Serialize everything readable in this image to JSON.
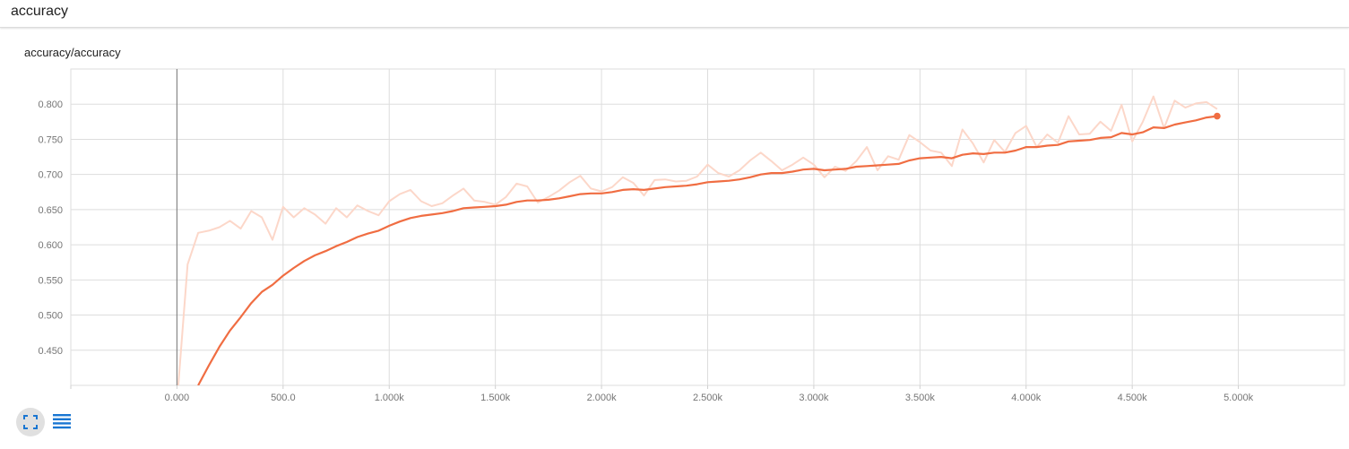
{
  "section": {
    "title": "accuracy"
  },
  "card": {
    "title": "accuracy/accuracy"
  },
  "colors": {
    "smoothed": "#f06d42",
    "raw": "#fcd7c9",
    "grid": "#dddddd",
    "zero_line": "#888888",
    "icon": "#1976d2"
  },
  "icons": {
    "expand": "fullscreen-icon",
    "data_toggle": "list-icon"
  },
  "chart_data": {
    "type": "line",
    "title": "accuracy/accuracy",
    "xlabel": "",
    "ylabel": "",
    "xlim": [
      -500,
      5500
    ],
    "ylim": [
      0.4,
      0.85
    ],
    "x_ticks": [
      "0.000",
      "500.0",
      "1.000k",
      "1.500k",
      "2.000k",
      "2.500k",
      "3.000k",
      "3.500k",
      "4.000k",
      "4.500k",
      "5.000k"
    ],
    "x_tick_values": [
      0,
      500,
      1000,
      1500,
      2000,
      2500,
      3000,
      3500,
      4000,
      4500,
      5000
    ],
    "y_ticks": [
      "0.450",
      "0.500",
      "0.550",
      "0.600",
      "0.650",
      "0.700",
      "0.750",
      "0.800"
    ],
    "y_tick_values": [
      0.45,
      0.5,
      0.55,
      0.6,
      0.65,
      0.7,
      0.75,
      0.8
    ],
    "grid": true,
    "legend": "none",
    "series": [
      {
        "role": "raw",
        "x": [
          0,
          50,
          100,
          150,
          200,
          250,
          300,
          350,
          400,
          450,
          500,
          550,
          600,
          650,
          700,
          750,
          800,
          850,
          900,
          950,
          1000,
          1050,
          1100,
          1150,
          1200,
          1250,
          1300,
          1350,
          1400,
          1450,
          1500,
          1550,
          1600,
          1650,
          1700,
          1750,
          1800,
          1850,
          1900,
          1950,
          2000,
          2050,
          2100,
          2150,
          2200,
          2250,
          2300,
          2350,
          2400,
          2450,
          2500,
          2550,
          2600,
          2650,
          2700,
          2750,
          2800,
          2850,
          2900,
          2950,
          3000,
          3050,
          3100,
          3150,
          3200,
          3250,
          3300,
          3350,
          3400,
          3450,
          3500,
          3550,
          3600,
          3650,
          3700,
          3750,
          3800,
          3850,
          3900,
          3950,
          4000,
          4050,
          4100,
          4150,
          4200,
          4250,
          4300,
          4350,
          4400,
          4450,
          4500,
          4550,
          4600,
          4650,
          4700,
          4750,
          4800,
          4850,
          4900
        ],
        "y": [
          0.375,
          0.572,
          0.617,
          0.62,
          0.625,
          0.634,
          0.623,
          0.648,
          0.639,
          0.607,
          0.654,
          0.639,
          0.652,
          0.643,
          0.63,
          0.652,
          0.639,
          0.656,
          0.648,
          0.642,
          0.662,
          0.672,
          0.678,
          0.662,
          0.655,
          0.659,
          0.67,
          0.68,
          0.663,
          0.661,
          0.657,
          0.668,
          0.687,
          0.683,
          0.66,
          0.668,
          0.677,
          0.689,
          0.698,
          0.68,
          0.676,
          0.682,
          0.696,
          0.688,
          0.67,
          0.692,
          0.693,
          0.69,
          0.691,
          0.697,
          0.714,
          0.702,
          0.697,
          0.706,
          0.72,
          0.731,
          0.719,
          0.706,
          0.714,
          0.724,
          0.714,
          0.696,
          0.711,
          0.705,
          0.719,
          0.739,
          0.706,
          0.726,
          0.721,
          0.756,
          0.746,
          0.734,
          0.731,
          0.712,
          0.764,
          0.744,
          0.717,
          0.749,
          0.732,
          0.759,
          0.769,
          0.739,
          0.757,
          0.745,
          0.783,
          0.757,
          0.758,
          0.775,
          0.762,
          0.799,
          0.747,
          0.775,
          0.811,
          0.766,
          0.805,
          0.795,
          0.801,
          0.803,
          0.793
        ]
      },
      {
        "role": "smoothed",
        "x": [
          100,
          150,
          200,
          250,
          300,
          350,
          400,
          450,
          500,
          550,
          600,
          650,
          700,
          750,
          800,
          850,
          900,
          950,
          1000,
          1050,
          1100,
          1150,
          1200,
          1250,
          1300,
          1350,
          1400,
          1450,
          1500,
          1550,
          1600,
          1650,
          1700,
          1750,
          1800,
          1850,
          1900,
          1950,
          2000,
          2050,
          2100,
          2150,
          2200,
          2250,
          2300,
          2350,
          2400,
          2450,
          2500,
          2550,
          2600,
          2650,
          2700,
          2750,
          2800,
          2850,
          2900,
          2950,
          3000,
          3050,
          3100,
          3150,
          3200,
          3250,
          3300,
          3350,
          3400,
          3450,
          3500,
          3550,
          3600,
          3650,
          3700,
          3750,
          3800,
          3850,
          3900,
          3950,
          4000,
          4050,
          4100,
          4150,
          4200,
          4250,
          4300,
          4350,
          4400,
          4450,
          4500,
          4550,
          4600,
          4650,
          4700,
          4750,
          4800,
          4850,
          4900
        ],
        "y": [
          0.4,
          0.428,
          0.455,
          0.478,
          0.497,
          0.517,
          0.533,
          0.543,
          0.556,
          0.567,
          0.577,
          0.585,
          0.591,
          0.598,
          0.604,
          0.611,
          0.616,
          0.62,
          0.627,
          0.633,
          0.638,
          0.641,
          0.643,
          0.645,
          0.648,
          0.652,
          0.653,
          0.654,
          0.655,
          0.657,
          0.661,
          0.663,
          0.663,
          0.664,
          0.666,
          0.669,
          0.672,
          0.673,
          0.673,
          0.675,
          0.678,
          0.679,
          0.678,
          0.68,
          0.682,
          0.683,
          0.684,
          0.686,
          0.689,
          0.69,
          0.691,
          0.693,
          0.696,
          0.7,
          0.702,
          0.702,
          0.704,
          0.707,
          0.708,
          0.706,
          0.707,
          0.708,
          0.711,
          0.712,
          0.713,
          0.714,
          0.715,
          0.72,
          0.723,
          0.724,
          0.725,
          0.723,
          0.728,
          0.73,
          0.729,
          0.731,
          0.731,
          0.734,
          0.739,
          0.739,
          0.741,
          0.742,
          0.747,
          0.748,
          0.749,
          0.752,
          0.753,
          0.759,
          0.757,
          0.76,
          0.767,
          0.766,
          0.771,
          0.774,
          0.777,
          0.781,
          0.783
        ]
      }
    ]
  }
}
